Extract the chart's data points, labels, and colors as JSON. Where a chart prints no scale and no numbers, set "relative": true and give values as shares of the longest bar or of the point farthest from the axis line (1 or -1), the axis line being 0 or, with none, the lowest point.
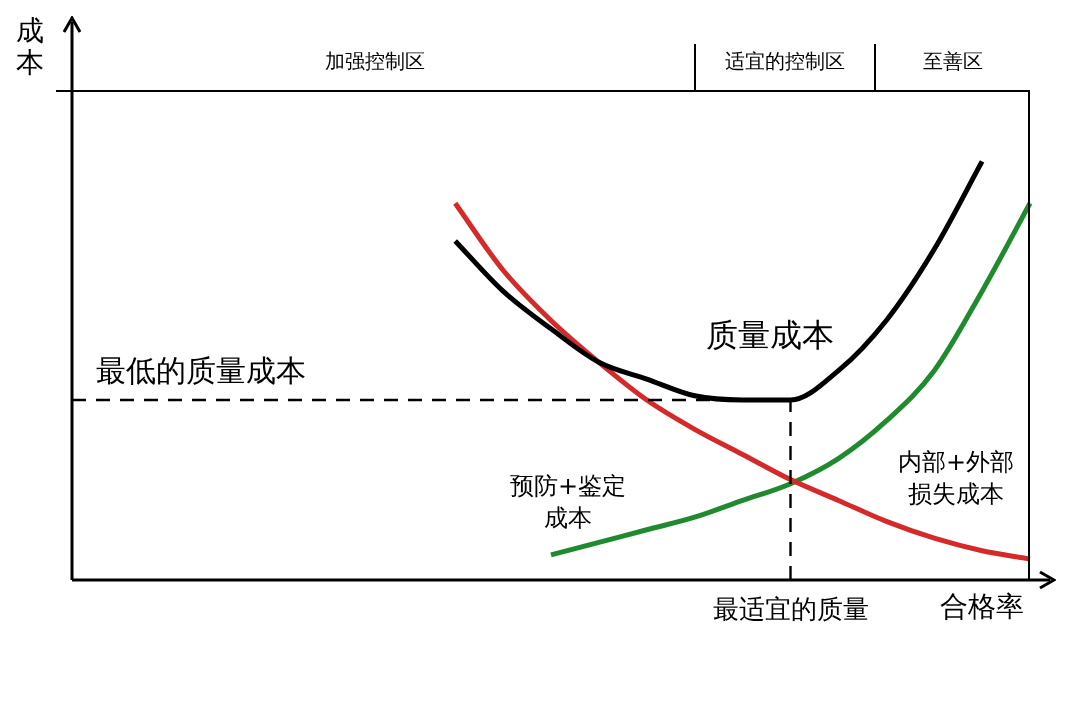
{
  "chart_data": {
    "type": "line",
    "relative": true,
    "xlabel": "合格率",
    "ylabel": "成本",
    "categories": [
      null,
      null,
      null,
      null,
      null,
      null,
      null,
      null,
      null,
      null,
      null,
      null,
      null,
      null,
      null,
      null,
      null,
      null,
      null,
      null,
      null
    ],
    "series": [
      {
        "color": "#000000",
        "values": [
          null,
          null,
          null,
          null,
          null,
          null,
          null,
          null,
          0.81,
          0.69,
          0.6,
          0.52,
          0.48,
          0.44,
          0.43,
          0.43,
          0.5,
          0.62,
          0.79,
          1,
          null
        ]
      },
      {
        "color": "#d42a2a",
        "values": [
          null,
          null,
          null,
          null,
          null,
          null,
          null,
          null,
          0.9,
          0.74,
          0.62,
          0.52,
          0.43,
          0.36,
          0.3,
          0.24,
          0.19,
          0.14,
          0.1,
          0.07,
          0.05
        ]
      },
      {
        "color": "#1f8a2e",
        "values": [
          null,
          null,
          null,
          null,
          null,
          null,
          null,
          null,
          null,
          null,
          0.06,
          0.09,
          0.12,
          0.15,
          0.19,
          0.23,
          0.29,
          0.38,
          0.5,
          0.69,
          0.9
        ]
      }
    ],
    "ref_lines": [
      {
        "axis": "y",
        "value": 0.43,
        "label": "最低的质量成本",
        "line_style": "dashed"
      }
    ],
    "annotations": [
      "加强控制区",
      "适宜的控制区",
      "至善区",
      "质量成本",
      "预防+鉴定成本",
      "内部+外部损失成本",
      "最适宜的质量"
    ],
    "grid": false,
    "legend": false,
    "marker": "none",
    "line_style": "solid"
  }
}
